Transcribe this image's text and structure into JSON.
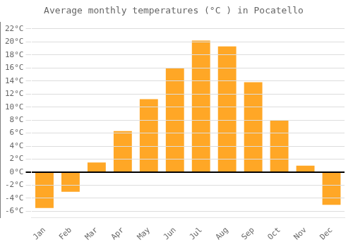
{
  "chart_data": {
    "type": "bar",
    "title": "Average monthly temperatures (°C ) in Pocatello",
    "categories": [
      "Jan",
      "Feb",
      "Mar",
      "Apr",
      "May",
      "Jun",
      "Jul",
      "Aug",
      "Sep",
      "Oct",
      "Nov",
      "Dec"
    ],
    "values": [
      -5.5,
      -3.0,
      1.5,
      6.3,
      11.2,
      16.0,
      20.2,
      19.3,
      13.8,
      8.0,
      1.0,
      -5.0
    ],
    "color": "#FFA726",
    "ylim": [
      -7,
      23
    ],
    "yticks": [
      {
        "value": -6,
        "label": "-6°C"
      },
      {
        "value": -4,
        "label": "-4°C"
      },
      {
        "value": -2,
        "label": "-2°C"
      },
      {
        "value": 0,
        "label": "0°C"
      },
      {
        "value": 2,
        "label": "2°C"
      },
      {
        "value": 4,
        "label": "4°C"
      },
      {
        "value": 6,
        "label": "6°C"
      },
      {
        "value": 8,
        "label": "8°C"
      },
      {
        "value": 10,
        "label": "10°C"
      },
      {
        "value": 12,
        "label": "12°C"
      },
      {
        "value": 14,
        "label": "14°C"
      },
      {
        "value": 16,
        "label": "16°C"
      },
      {
        "value": 18,
        "label": "18°C"
      },
      {
        "value": 20,
        "label": "20°C"
      },
      {
        "value": 22,
        "label": "22°C"
      }
    ],
    "grid": true
  }
}
